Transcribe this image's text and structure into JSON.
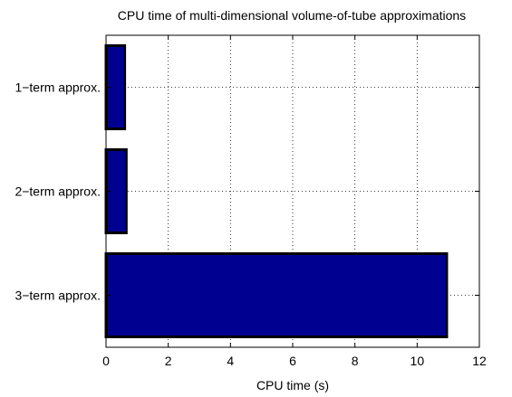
{
  "chart_data": {
    "type": "bar",
    "orientation": "horizontal",
    "title": "CPU time of multi-dimensional volume-of-tube approximations",
    "xlabel": "CPU time (s)",
    "ylabel": "",
    "categories": [
      "1−term approx.",
      "2−term approx.",
      "3−term approx."
    ],
    "values": [
      0.6,
      0.65,
      10.95
    ],
    "xlim": [
      0,
      12
    ],
    "xticks": [
      0,
      2,
      4,
      6,
      8,
      10,
      12
    ],
    "grid": true,
    "bar_color": "#000090"
  }
}
